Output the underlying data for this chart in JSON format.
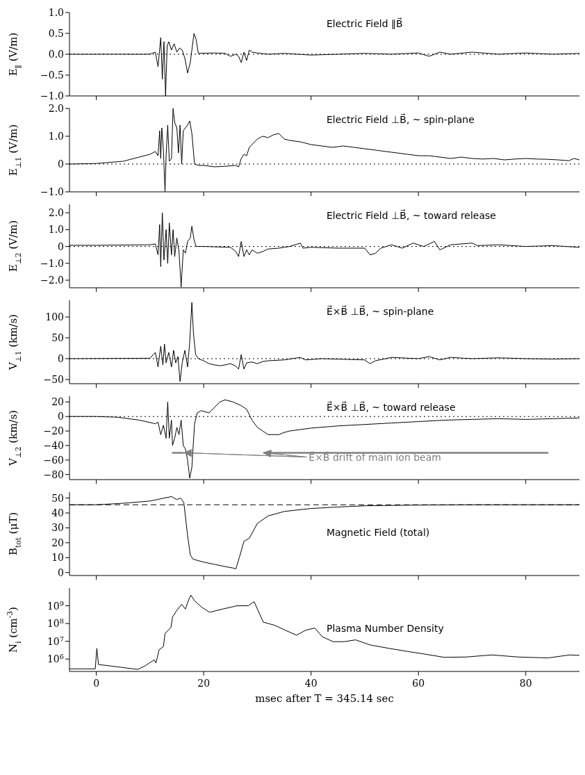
{
  "chart_data": [
    {
      "type": "line",
      "title": "Electric Field ∥B⃗",
      "ylabel": "E$_{∥}$ (V/m)",
      "xlim": [
        -5,
        90
      ],
      "xticks": [
        0,
        20,
        40,
        60,
        80
      ],
      "ylim": [
        -1,
        1
      ],
      "yticks": [
        {
          "value": -1,
          "label": "−1.0"
        },
        {
          "value": -0.5,
          "label": "−0.5"
        },
        {
          "value": 0,
          "label": "0.0"
        },
        {
          "value": 0.5,
          "label": "0.5"
        },
        {
          "value": 1,
          "label": "1.0"
        }
      ],
      "tick_labels": "y",
      "ref_lines": [
        {
          "axis": "y",
          "value": 0,
          "color": "#000000",
          "line_style": "dotted"
        }
      ],
      "x": [
        -5,
        10,
        11,
        11.5,
        12,
        12.3,
        12.6,
        12.9,
        13.2,
        13.5,
        14,
        14.5,
        15,
        15.5,
        16,
        16.5,
        17,
        17.5,
        17.8,
        18.2,
        18.6,
        19,
        22,
        24,
        25,
        26,
        26.5,
        27,
        27.5,
        28,
        28.5,
        29,
        30,
        32,
        35,
        40,
        45,
        50,
        55,
        60,
        62,
        64,
        66,
        70,
        75,
        80,
        85,
        90
      ],
      "series": [
        {
          "color": "#000000",
          "values": [
            0,
            0,
            0.05,
            -0.3,
            0.4,
            -0.6,
            0.3,
            -1.0,
            0.2,
            0.3,
            0.1,
            0.25,
            0.05,
            0.15,
            0.1,
            -0.1,
            -0.45,
            -0.2,
            0.1,
            0.5,
            0.35,
            0.02,
            0.03,
            0.02,
            -0.05,
            0,
            -0.05,
            -0.2,
            0.05,
            -0.15,
            0.1,
            0.05,
            0.03,
            0,
            0.02,
            -0.02,
            0,
            0.02,
            0,
            0.03,
            -0.05,
            0.05,
            0,
            0.05,
            0,
            0.03,
            0,
            0.02
          ]
        }
      ]
    },
    {
      "type": "line",
      "title": "Electric Field ⊥B⃗, ~ spin-plane",
      "ylabel": "E$_{⊥1}$ (V/m)",
      "xlim": [
        -5,
        90
      ],
      "xticks": [
        0,
        20,
        40,
        60,
        80
      ],
      "ylim": [
        -1,
        2
      ],
      "yticks": [
        {
          "value": -1,
          "label": "−1.0"
        },
        0,
        {
          "value": 1,
          "label": "1.0"
        },
        {
          "value": 2,
          "label": "2.0"
        }
      ],
      "tick_labels": "y",
      "ref_lines": [
        {
          "axis": "y",
          "value": 0,
          "color": "#000000",
          "line_style": "dotted"
        }
      ],
      "x": [
        -5,
        0,
        5,
        8,
        10,
        11,
        11.5,
        11.8,
        12,
        12.2,
        12.5,
        12.8,
        13,
        13.3,
        13.6,
        14,
        14.3,
        14.6,
        15,
        15.3,
        15.6,
        15.9,
        16.2,
        16.6,
        17,
        17.4,
        17.8,
        18.3,
        19,
        20,
        22,
        24,
        26,
        26.5,
        27,
        27.5,
        28,
        28.5,
        29,
        30,
        31,
        32,
        33,
        34,
        35,
        36,
        38,
        40,
        42,
        44,
        46,
        48,
        50,
        52,
        54,
        56,
        58,
        60,
        62,
        64,
        66,
        68,
        70,
        72,
        74,
        76,
        78,
        80,
        82,
        84,
        86,
        88,
        89,
        90
      ],
      "series": [
        {
          "color": "#000000",
          "values": [
            0,
            0.02,
            0.1,
            0.25,
            0.35,
            0.45,
            0.3,
            1.2,
            0.2,
            1.3,
            0.5,
            -1.0,
            0.3,
            1.4,
            0.1,
            0.2,
            2.0,
            1.5,
            1.3,
            0.4,
            1.4,
            0,
            1.2,
            1.3,
            1.4,
            1.55,
            1.1,
            0,
            -0.05,
            -0.05,
            -0.1,
            -0.08,
            -0.05,
            -0.1,
            0.2,
            0.35,
            0.3,
            0.6,
            0.7,
            0.9,
            1.0,
            0.95,
            1.05,
            1.1,
            0.9,
            0.85,
            0.8,
            0.7,
            0.65,
            0.6,
            0.65,
            0.6,
            0.55,
            0.5,
            0.45,
            0.4,
            0.35,
            0.3,
            0.3,
            0.25,
            0.2,
            0.25,
            0.2,
            0.18,
            0.2,
            0.15,
            0.18,
            0.2,
            0.18,
            0.17,
            0.15,
            0.12,
            0.2,
            0.15
          ]
        }
      ]
    },
    {
      "type": "line",
      "title": "Electric Field ⊥B⃗, ~ toward release",
      "ylabel": "E$_{⊥2}$ (V/m)",
      "xlim": [
        -5,
        90
      ],
      "xticks": [
        0,
        20,
        40,
        60,
        80
      ],
      "ylim": [
        -2.45,
        2.5
      ],
      "yticks": [
        {
          "value": -2,
          "label": "−2.0"
        },
        {
          "value": -1,
          "label": "−1.0"
        },
        0,
        {
          "value": 1,
          "label": "1.0"
        },
        {
          "value": 2,
          "label": "2.0"
        }
      ],
      "tick_labels": "y",
      "ref_lines": [
        {
          "axis": "y",
          "value": 0,
          "color": "#000000",
          "line_style": "dotted"
        }
      ],
      "x": [
        -5,
        0,
        10,
        11,
        11.5,
        11.8,
        12,
        12.3,
        12.6,
        13,
        13.3,
        13.6,
        14,
        14.3,
        14.6,
        15,
        15.4,
        15.8,
        16.2,
        16.6,
        17,
        17.5,
        17.8,
        18.2,
        18.6,
        20,
        22,
        25,
        26,
        26.5,
        27,
        27.5,
        28,
        28.5,
        29,
        30,
        31,
        32,
        34,
        36,
        38,
        38.5,
        40,
        45,
        50,
        51,
        52,
        53,
        55,
        57,
        59,
        61,
        63,
        64,
        66,
        68,
        70,
        71,
        75,
        80,
        85,
        90
      ],
      "series": [
        {
          "color": "#000000",
          "values": [
            0.07,
            0.07,
            0.1,
            0.15,
            -0.5,
            1.3,
            -1.2,
            2.0,
            -0.8,
            1.0,
            -1.0,
            1.4,
            -0.5,
            1.0,
            -0.6,
            0.5,
            -0.3,
            -2.4,
            -0.2,
            -0.4,
            0.3,
            0.5,
            1.2,
            0.4,
            0,
            0,
            -0.02,
            -0.05,
            -0.3,
            -0.6,
            0.3,
            -0.6,
            -0.2,
            -0.5,
            -0.2,
            -0.4,
            -0.3,
            -0.15,
            -0.1,
            0,
            0.2,
            -0.1,
            -0.05,
            -0.1,
            -0.1,
            -0.5,
            -0.4,
            -0.1,
            0.1,
            -0.1,
            0.2,
            0,
            0.3,
            -0.2,
            0.1,
            0.15,
            0.2,
            0.05,
            0.1,
            0,
            0.05,
            -0.05
          ]
        }
      ]
    },
    {
      "type": "line",
      "title": "E⃗×B⃗ ⊥B⃗, ~ spin-plane",
      "ylabel": "V$_{⊥1}$ (km/s)",
      "xlim": [
        -5,
        90
      ],
      "xticks": [
        0,
        20,
        40,
        60,
        80
      ],
      "ylim": [
        -60,
        140
      ],
      "yticks": [
        {
          "value": -50,
          "label": "−50"
        },
        0,
        50,
        100
      ],
      "tick_labels": "y",
      "ref_lines": [
        {
          "axis": "y",
          "value": 0,
          "color": "#000000",
          "line_style": "dotted"
        }
      ],
      "x": [
        -5,
        10,
        11,
        11.5,
        12,
        12.4,
        12.7,
        13,
        13.5,
        14,
        14.4,
        14.8,
        15.2,
        15.6,
        16,
        16.5,
        17,
        17.4,
        17.8,
        18.1,
        18.5,
        19,
        20,
        21,
        22,
        23,
        24,
        25,
        26,
        26.5,
        27,
        27.5,
        28,
        29,
        30,
        31,
        32,
        35,
        38,
        39,
        42,
        50,
        51,
        52,
        55,
        60,
        62,
        64,
        66,
        70,
        75,
        80,
        85,
        90
      ],
      "series": [
        {
          "color": "#000000",
          "values": [
            0,
            1,
            15,
            -20,
            30,
            -15,
            35,
            -10,
            15,
            -20,
            20,
            -10,
            5,
            -55,
            -10,
            20,
            -20,
            40,
            135,
            60,
            10,
            0,
            -5,
            -12,
            -15,
            -17,
            -15,
            -12,
            -18,
            -25,
            10,
            -25,
            -10,
            -8,
            -12,
            -7,
            -5,
            -3,
            3,
            -3,
            0,
            -3,
            -12,
            -5,
            3,
            0,
            5,
            -3,
            3,
            0,
            2,
            0,
            -1,
            0
          ]
        }
      ]
    },
    {
      "type": "line",
      "title": "E⃗×B⃗ ⊥B⃗, ~ toward release",
      "ylabel": "V$_{⊥2}$ (km/s)",
      "xlim": [
        -5,
        90
      ],
      "xticks": [
        0,
        20,
        40,
        60,
        80
      ],
      "ylim": [
        -87,
        28
      ],
      "yticks": [
        {
          "value": -80,
          "label": "−80"
        },
        {
          "value": -60,
          "label": "−60"
        },
        {
          "value": -40,
          "label": "−40"
        },
        {
          "value": -20,
          "label": "−20"
        },
        0,
        20
      ],
      "tick_labels": "y",
      "ref_lines": [
        {
          "axis": "y",
          "value": 0,
          "color": "#000000",
          "line_style": "dotted"
        }
      ],
      "annotations": [
        "E⃗×B⃗ drift of main ion beam"
      ],
      "x": [
        -5,
        0,
        4,
        8,
        11,
        11.5,
        12,
        12.5,
        13,
        13.3,
        13.6,
        14,
        14.2,
        14.6,
        15,
        15.4,
        15.8,
        16.2,
        16.6,
        17,
        17.4,
        17.8,
        18.3,
        18.8,
        19.5,
        21,
        23,
        24,
        25.5,
        27,
        28,
        29,
        30,
        31,
        32,
        33,
        34,
        35,
        36,
        38,
        40,
        45,
        50,
        55,
        60,
        65,
        70,
        75,
        80,
        85,
        90
      ],
      "series": [
        {
          "color": "#000000",
          "values": [
            0,
            0,
            -1,
            -5,
            -10,
            -8,
            -25,
            -12,
            -30,
            20,
            -30,
            -5,
            -40,
            -30,
            -15,
            -25,
            -5,
            -40,
            -45,
            -60,
            -85,
            -70,
            -10,
            5,
            8,
            5,
            20,
            23,
            20,
            15,
            10,
            -5,
            -15,
            -20,
            -25,
            -25,
            -25,
            -22,
            -20,
            -18,
            -16,
            -13,
            -11,
            -9,
            -7,
            -5,
            -4,
            -3,
            -4,
            -3,
            -2
          ]
        },
        {
          "color": "#808080",
          "x": [
            14.1,
            16.3,
            16.4,
            31.1,
            84.2
          ],
          "values": [
            -50,
            -50,
            null,
            -50,
            -50
          ]
        }
      ]
    },
    {
      "type": "line",
      "title": "Magnetic Field (total)",
      "ylabel": "B$_{tot}$ (μT)",
      "xlim": [
        -5,
        90
      ],
      "xticks": [
        0,
        20,
        40,
        60,
        80
      ],
      "ylim": [
        -2,
        54
      ],
      "yticks": [
        0,
        10,
        20,
        30,
        40,
        50
      ],
      "tick_labels": "y",
      "ref_lines": [
        {
          "axis": "y",
          "value": 45.5,
          "color": "#000000",
          "line_style": "dashed"
        }
      ],
      "x": [
        -5,
        0,
        5,
        10,
        14,
        15,
        15.7,
        16.3,
        17,
        17.5,
        18,
        20,
        22,
        24,
        25.5,
        26,
        26.8,
        27.5,
        28.5,
        30,
        32,
        35,
        40,
        45,
        50,
        60,
        70,
        90
      ],
      "series": [
        {
          "color": "#000000",
          "values": [
            45.5,
            45.5,
            46.5,
            48,
            51,
            49,
            50,
            47,
            25,
            12,
            9,
            7,
            5.5,
            4,
            3,
            2.5,
            12,
            21,
            23,
            33,
            38,
            41,
            43,
            44,
            44.8,
            45.3,
            45.5,
            45.5
          ]
        }
      ]
    },
    {
      "type": "line",
      "title": "Plasma Number Density",
      "ylabel": "N$_{i}$ (cm$^{-3}$)",
      "xlabel": "msec after T = 345.14 sec",
      "log": true,
      "xlim": [
        -5,
        90
      ],
      "xticks": [
        0,
        20,
        40,
        60,
        80
      ],
      "ylim": [
        200000,
        10000000000
      ],
      "yticks": [
        {
          "value": 1000000,
          "label": "10$^{6}$"
        },
        {
          "value": 10000000,
          "label": "10$^{7}$"
        },
        {
          "value": 100000000,
          "label": "10$^{8}$"
        },
        {
          "value": 1000000000,
          "label": "10$^{9}$"
        }
      ],
      "x": [
        -5,
        -0.2,
        0.1,
        0.4,
        2.8,
        7.7,
        9,
        10.8,
        11.1,
        11.7,
        12.5,
        12.8,
        13.9,
        14.2,
        14.9,
        15.9,
        16.6,
        17,
        17.6,
        18.3,
        19.7,
        21.1,
        23.5,
        26.2,
        28.3,
        29.4,
        31.1,
        33.2,
        35.2,
        37.3,
        39,
        40.7,
        42.1,
        44.1,
        46.2,
        48.3,
        51,
        54.5,
        57.9,
        60.7,
        64.8,
        68.9,
        73.7,
        78.6,
        84.1,
        88.2,
        90
      ],
      "series": [
        {
          "color": "#000000",
          "values": [
            280000,
            280000,
            4000000,
            490000,
            400000,
            260000,
            400000,
            900000,
            600000,
            3300000,
            5000000,
            27000000,
            60000000,
            230000000,
            500000000,
            1200000000,
            650000000,
            1500000000,
            4000000000,
            1900000000,
            800000000,
            430000000,
            650000000,
            1000000000,
            1000000000,
            1700000000,
            120000000,
            80000000,
            42000000,
            22000000,
            42000000,
            56000000,
            18000000,
            9500000,
            9500000,
            12000000,
            6200000,
            4000000,
            2700000,
            2000000,
            1250000,
            1300000,
            1700000,
            1300000,
            1150000,
            1700000,
            1600000
          ]
        }
      ]
    }
  ]
}
